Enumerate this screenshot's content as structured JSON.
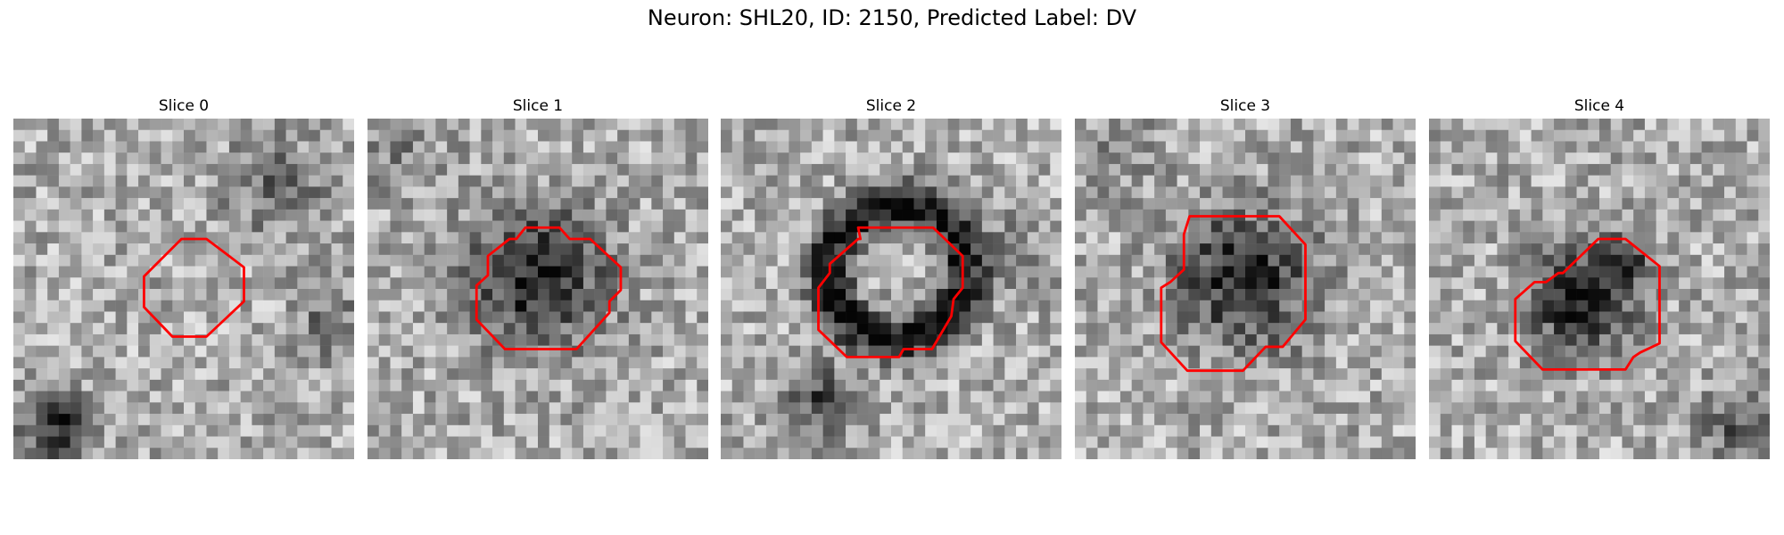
{
  "figure": {
    "title": "Neuron: SHL20, ID: 2150, Predicted Label: DV",
    "contour_color": "#ff0000",
    "colormap": "grayscale"
  },
  "panels": [
    {
      "title": "Slice 0",
      "pattern": "diffuse-noise",
      "seed": 11
    },
    {
      "title": "Slice 1",
      "pattern": "dark-cell-body",
      "seed": 23
    },
    {
      "title": "Slice 2",
      "pattern": "dark-ring",
      "seed": 37
    },
    {
      "title": "Slice 3",
      "pattern": "dark-cell-body",
      "seed": 41
    },
    {
      "title": "Slice 4",
      "pattern": "dark-blob-offset",
      "seed": 59
    }
  ]
}
